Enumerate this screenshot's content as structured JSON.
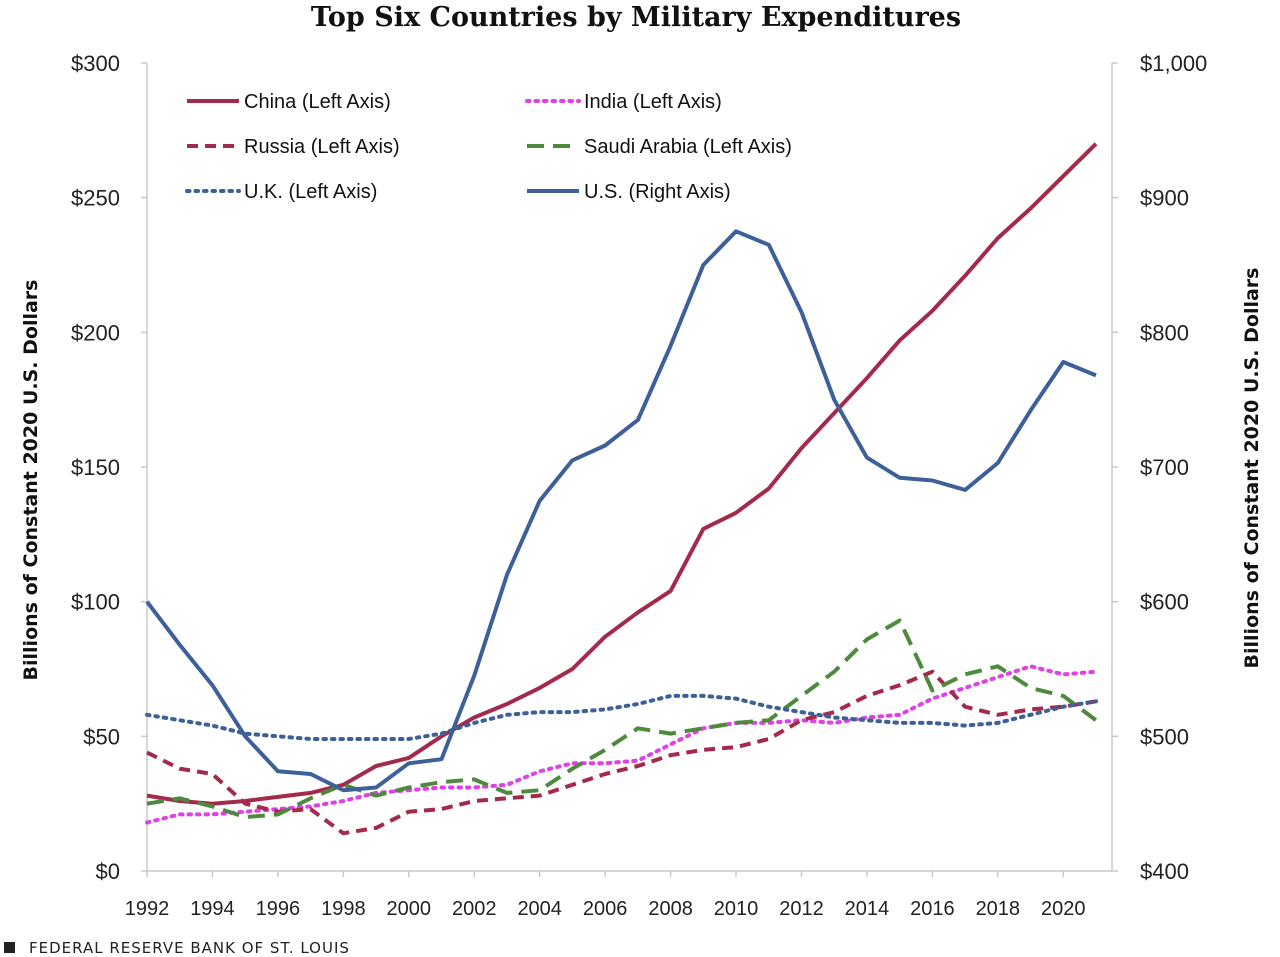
{
  "chart_data": {
    "type": "line",
    "title": "Top Six Countries by Military Expenditures",
    "ylabel_left": "Billions of Constant  2020 U.S. Dollars",
    "ylabel_right": "Billions of Constant  2020 U.S. Dollars",
    "y_left_range": [
      0,
      300
    ],
    "y_right_range": [
      400,
      1000
    ],
    "y_left_ticks": [
      "$0",
      "$50",
      "$100",
      "$150",
      "$200",
      "$250",
      "$300"
    ],
    "y_right_ticks": [
      "$400",
      "$500",
      "$600",
      "$700",
      "$800",
      "$900",
      "$1,000"
    ],
    "x_range": [
      1992,
      2021
    ],
    "x_ticks": [
      "1992",
      "1994",
      "1996",
      "1998",
      "2000",
      "2002",
      "2004",
      "2006",
      "2008",
      "2010",
      "2012",
      "2014",
      "2016",
      "2018",
      "2020"
    ],
    "grid": false,
    "legend_position": "top-left",
    "x": [
      1992,
      1993,
      1994,
      1995,
      1996,
      1997,
      1998,
      1999,
      2000,
      2001,
      2002,
      2003,
      2004,
      2005,
      2006,
      2007,
      2008,
      2009,
      2010,
      2011,
      2012,
      2013,
      2014,
      2015,
      2016,
      2017,
      2018,
      2019,
      2020,
      2021
    ],
    "series": [
      {
        "name": "China (Left Axis)",
        "axis": "left",
        "color": "#A42A4C",
        "dash": "solid",
        "values": [
          28,
          26,
          25,
          26,
          27.5,
          29,
          32,
          39,
          42,
          50,
          57,
          62,
          68,
          75,
          87,
          96,
          104,
          127,
          133,
          142,
          157,
          170,
          183,
          197,
          208,
          221,
          235,
          246,
          258,
          270
        ]
      },
      {
        "name": "India (Left Axis)",
        "axis": "left",
        "color": "#E040E8",
        "dash": "dot",
        "values": [
          18,
          21,
          21,
          22,
          23,
          24,
          26,
          29,
          30,
          31,
          31,
          32,
          37,
          40,
          40,
          41,
          47,
          53,
          55,
          55,
          56,
          55,
          57,
          58,
          64,
          68,
          72,
          76,
          73,
          74
        ]
      },
      {
        "name": "Russia (Left Axis)",
        "axis": "left",
        "color": "#A42A4C",
        "dash": "dash",
        "values": [
          44,
          38,
          36,
          25,
          22,
          23,
          14,
          16,
          22,
          23,
          26,
          27,
          28,
          32,
          36,
          39,
          43,
          45,
          46,
          49,
          56,
          59,
          65,
          69,
          74,
          61,
          58,
          60,
          61,
          63
        ]
      },
      {
        "name": "Saudi Arabia (Left Axis)",
        "axis": "left",
        "color": "#4E8A3E",
        "dash": "longdash",
        "values": [
          25,
          27,
          24,
          20,
          21,
          27,
          32,
          28,
          31,
          33,
          34,
          29,
          30,
          38,
          45,
          53,
          51,
          53,
          55,
          56,
          65,
          74,
          86,
          93,
          67,
          73,
          76,
          68,
          65,
          56
        ]
      },
      {
        "name": "U.K. (Left Axis)",
        "axis": "left",
        "color": "#3E6099",
        "dash": "dot",
        "values": [
          58,
          56,
          54,
          51,
          50,
          49,
          49,
          49,
          49,
          51,
          55,
          58,
          59,
          59,
          60,
          62,
          65,
          65,
          64,
          61,
          59,
          57,
          56,
          55,
          55,
          54,
          55,
          58,
          61,
          63
        ]
      },
      {
        "name": "U.S. (Right Axis)",
        "axis": "right",
        "color": "#3E6099",
        "dash": "solid",
        "values": [
          600,
          568,
          538,
          500,
          474,
          472,
          460,
          462,
          480,
          483,
          545,
          620,
          675,
          705,
          716,
          735,
          790,
          850,
          875,
          865,
          815,
          750,
          707,
          692,
          690,
          683,
          703,
          742,
          778,
          768
        ]
      }
    ]
  },
  "footer": {
    "source": "FEDERAL RESERVE BANK OF ST. LOUIS"
  }
}
